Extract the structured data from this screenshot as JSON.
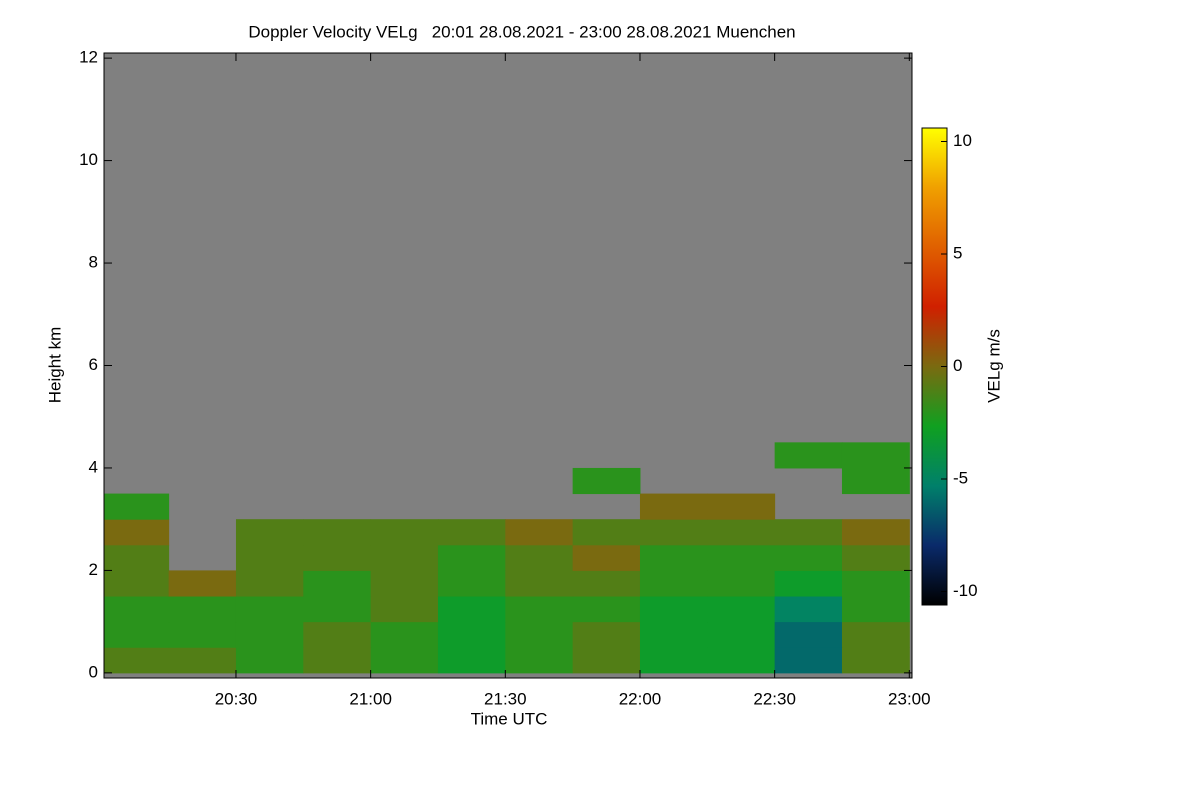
{
  "chart_data": {
    "type": "heatmap",
    "title": "Doppler Velocity VELg   20:01 28.08.2021 - 23:00 28.08.2021 Muenchen",
    "xlabel": "Time UTC",
    "ylabel": "Height km",
    "colorbar_label": "VELg m/s",
    "xlim": [
      20.01,
      23.01
    ],
    "xticks": [
      {
        "value": 20.5,
        "label": "20:30"
      },
      {
        "value": 21.0,
        "label": "21:00"
      },
      {
        "value": 21.5,
        "label": "21:30"
      },
      {
        "value": 22.0,
        "label": "22:00"
      },
      {
        "value": 22.5,
        "label": "22:30"
      },
      {
        "value": 23.0,
        "label": "23:00"
      }
    ],
    "ylim": [
      -0.1,
      12.1
    ],
    "yticks": [
      0,
      2,
      4,
      6,
      8,
      10,
      12
    ],
    "clim": [
      -10.6,
      10.6
    ],
    "cticks": [
      -10,
      -5,
      0,
      5,
      10
    ],
    "colors": [
      "#000000",
      "#0a2a6a",
      "#00806a",
      "#10a020",
      "#7a6a10",
      "#d02000",
      "#e06000",
      "#f0a000",
      "#ffff00"
    ],
    "background_color": "#808080",
    "x_edges": [
      20,
      20.25,
      20.5,
      20.75,
      21,
      21.25,
      21.5,
      21.75,
      22,
      22.25,
      22.5,
      22.75,
      23
    ],
    "y_edges": [
      0,
      0.5,
      1,
      1.5,
      2,
      2.5,
      3,
      3.5,
      4,
      4.5
    ],
    "z": [
      [
        -1,
        -1,
        -2,
        -1,
        -2,
        -3,
        -2,
        -1,
        -3,
        -3,
        -6,
        -1
      ],
      [
        -2,
        -2,
        -2,
        -1,
        -2,
        -3,
        -2,
        -1,
        -3,
        -3,
        -6,
        -1
      ],
      [
        -2,
        -2,
        -2,
        -2,
        -1,
        -3,
        -2,
        -2,
        -3,
        -3,
        -5,
        -2
      ],
      [
        -1,
        0,
        -1,
        -2,
        -1,
        -2,
        -1,
        -1,
        -2,
        -2,
        -3,
        -2
      ],
      [
        -1,
        null,
        -1,
        -1,
        -1,
        -2,
        -1,
        0,
        -2,
        -2,
        -2,
        -1
      ],
      [
        0,
        null,
        -1,
        -1,
        -1,
        -1,
        0,
        -1,
        -1,
        -1,
        -1,
        0
      ],
      [
        -2,
        null,
        null,
        null,
        null,
        null,
        null,
        null,
        0,
        0,
        null,
        null
      ],
      [
        null,
        null,
        null,
        null,
        null,
        null,
        null,
        -2,
        null,
        null,
        null,
        -2
      ],
      [
        null,
        null,
        null,
        null,
        null,
        null,
        null,
        null,
        null,
        null,
        -2,
        -2
      ]
    ]
  }
}
